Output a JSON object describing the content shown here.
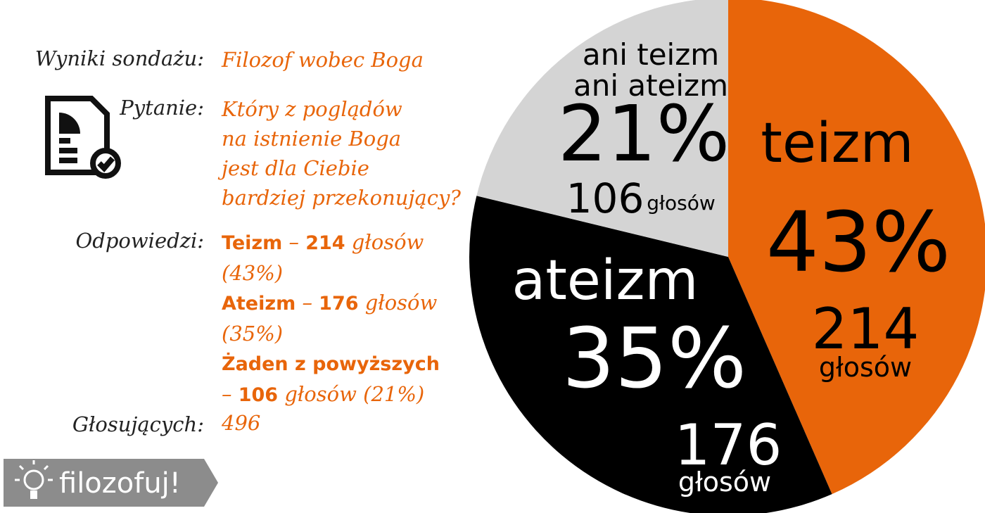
{
  "poll": {
    "title_label": "Wyniki sondażu:",
    "title": "Filozof wobec Boga",
    "question_label": "Pytanie:",
    "question_lines": [
      "Który z poglądów",
      "na istnienie Boga",
      "jest dla Ciebie",
      "bardziej przekonujący?"
    ],
    "answers_label": "Odpowiedzi:",
    "separator": "–",
    "answers": [
      {
        "name": "Teizm",
        "votes": 214,
        "unit": "głosów",
        "share": "(43%)"
      },
      {
        "name": "Ateizm",
        "votes": 176,
        "unit": "głosów",
        "share": "(35%)"
      },
      {
        "name": "Żaden z powyższych",
        "votes": 106,
        "unit": "głosów",
        "share": "(21%)"
      }
    ],
    "voters_label": "Głosujących:",
    "voters": 496,
    "logo": "filozofuj!"
  },
  "chart_data": {
    "type": "pie",
    "categories": [
      [
        "teizm"
      ],
      [
        "ateizm"
      ],
      [
        "ani teizm",
        "ani ateizm"
      ]
    ],
    "values": [
      43,
      35,
      21
    ],
    "value_labels": [
      "43%",
      "35%",
      "21%"
    ],
    "votes": [
      214,
      176,
      106
    ],
    "votes_unit": "głosów",
    "colors": [
      "#e8650a",
      "#000000",
      "#d4d4d4"
    ],
    "text_colors": [
      "#000000",
      "#ffffff",
      "#000000"
    ]
  }
}
